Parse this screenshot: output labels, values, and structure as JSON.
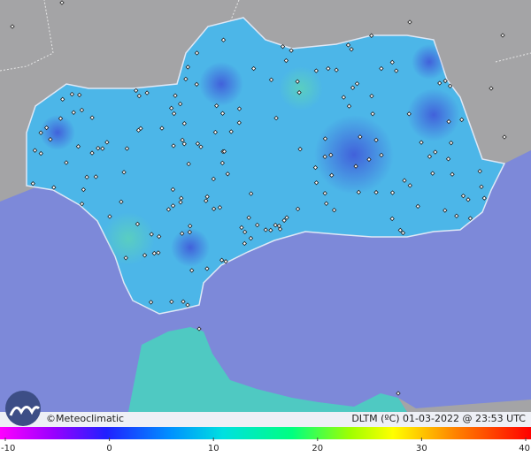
{
  "map": {
    "credit": "©Meteoclimatic",
    "caption": "DLTM (ºC) 01-03-2022 @ 23:53 UTC",
    "colorbar": {
      "range": [
        -10,
        40
      ],
      "ticks": [
        -10,
        0,
        10,
        20,
        30,
        40
      ]
    }
  }
}
